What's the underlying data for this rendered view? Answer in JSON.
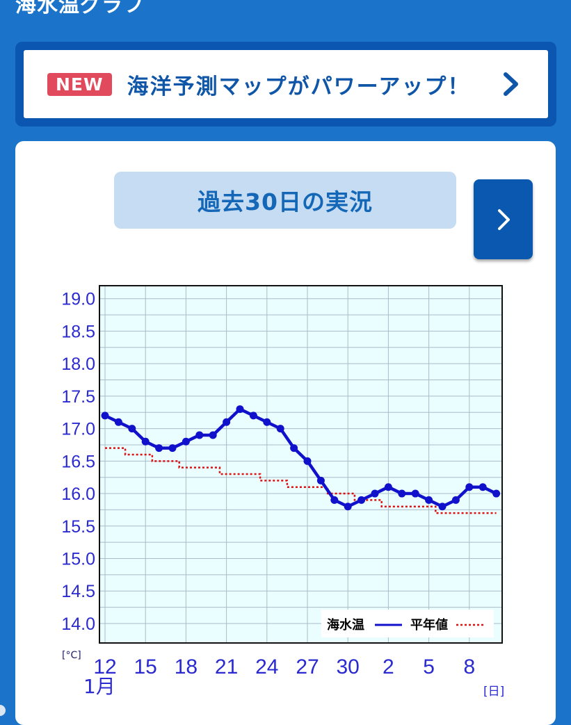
{
  "header": {
    "title": "海水温グラフ"
  },
  "banner": {
    "badge": "NEW",
    "text": "海洋予測マップがパワーアップ！",
    "icon": "chevron-right-icon"
  },
  "period": {
    "label": "過去30日の実況",
    "next_icon": "chevron-right-icon"
  },
  "colors": {
    "background": "#1b74c9",
    "banner_border": "#0a56b0",
    "badge": "#e04a5c",
    "accent_text": "#0f55a8",
    "period_bg": "#c5dcf2",
    "button": "#0b58b0",
    "plot_bg": "#eafdff",
    "grid": "#a9bcc8",
    "series_sst": "#1111cc",
    "series_normal": "#dd1111"
  },
  "chart_data": {
    "type": "line",
    "unit_label": "[°C]",
    "xunit_label": "[日]",
    "month_label": "1月",
    "x": [
      12,
      13,
      14,
      15,
      16,
      17,
      18,
      19,
      20,
      21,
      22,
      23,
      24,
      25,
      26,
      27,
      28,
      29,
      30,
      31,
      1,
      2,
      3,
      4,
      5,
      6,
      7,
      8,
      9,
      10
    ],
    "x_ticks": [
      "12",
      "15",
      "18",
      "21",
      "24",
      "27",
      "30",
      "2",
      "5",
      "8"
    ],
    "ylim": [
      13.7,
      19.2
    ],
    "y_ticks": [
      "19.0",
      "18.5",
      "18.0",
      "17.5",
      "17.0",
      "16.5",
      "16.0",
      "15.5",
      "15.0",
      "14.5",
      "14.0"
    ],
    "grid": true,
    "legend_position": "bottom-right",
    "series": [
      {
        "name": "海水温",
        "style": "solid-markers",
        "values": [
          17.2,
          17.1,
          17.0,
          16.8,
          16.7,
          16.7,
          16.8,
          16.9,
          16.9,
          17.1,
          17.3,
          17.2,
          17.1,
          17.0,
          16.7,
          16.5,
          16.2,
          15.9,
          15.8,
          15.9,
          16.0,
          16.1,
          16.0,
          16.0,
          15.9,
          15.8,
          15.9,
          16.1,
          16.1,
          16.0
        ]
      },
      {
        "name": "平年値",
        "style": "dotted",
        "values": [
          16.7,
          16.7,
          16.6,
          16.6,
          16.5,
          16.5,
          16.4,
          16.4,
          16.4,
          16.3,
          16.3,
          16.3,
          16.2,
          16.2,
          16.1,
          16.1,
          16.1,
          16.0,
          16.0,
          15.9,
          15.9,
          15.8,
          15.8,
          15.8,
          15.8,
          15.7,
          15.7,
          15.7,
          15.7,
          15.7
        ]
      }
    ]
  }
}
